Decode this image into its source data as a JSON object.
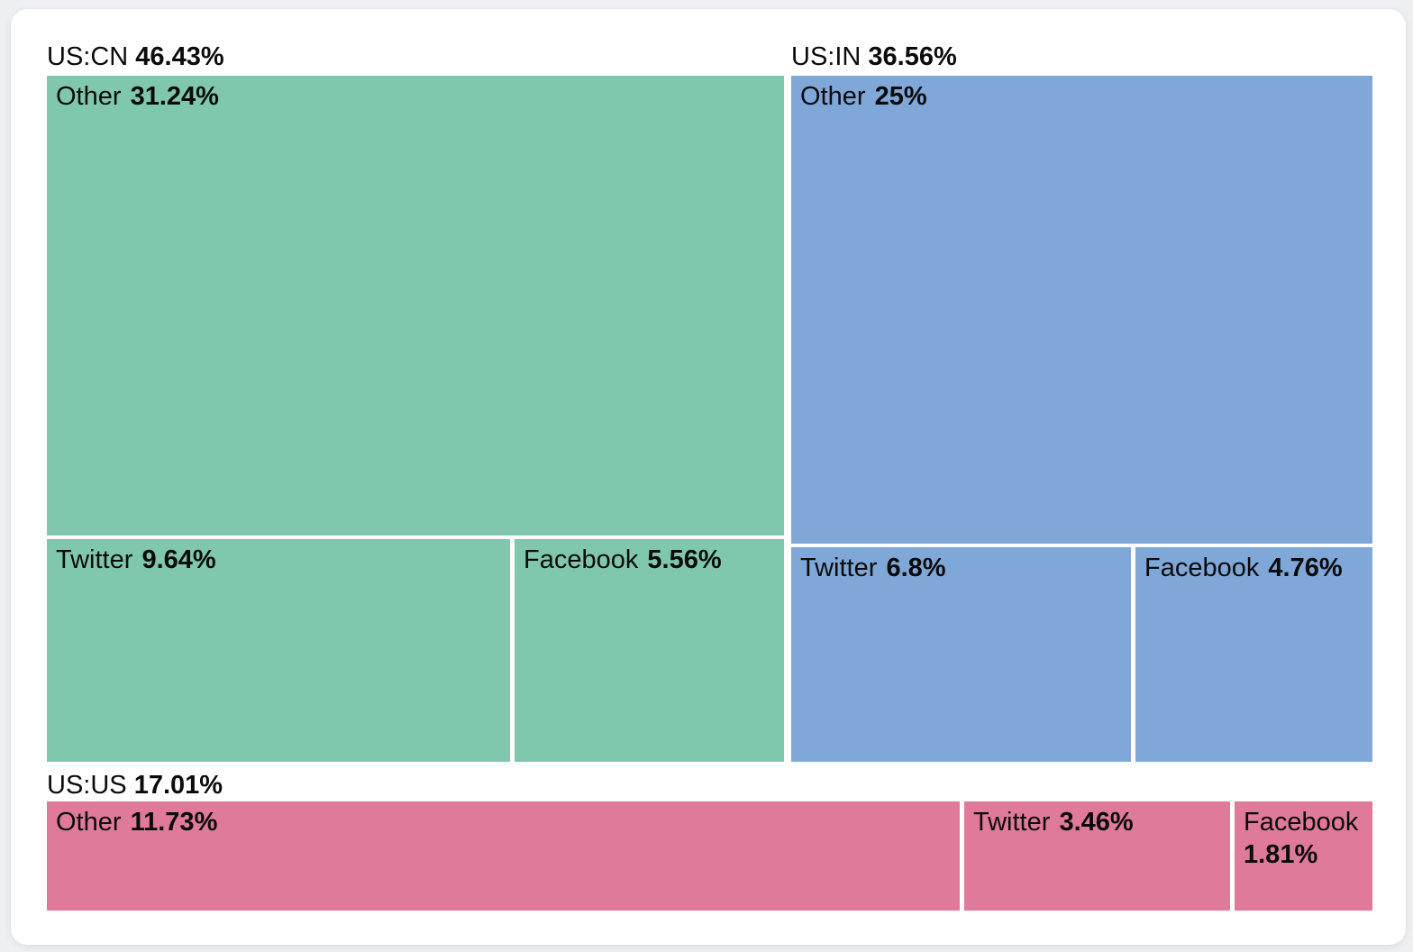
{
  "chart_data": {
    "type": "treemap",
    "unit": "percent",
    "legend_position": "none",
    "groups": [
      {
        "name": "US:CN",
        "value": 46.43,
        "label": "46.43%",
        "color": "#80c8ad",
        "children": [
          {
            "name": "Other",
            "value": 31.24,
            "label": "31.24%"
          },
          {
            "name": "Twitter",
            "value": 9.64,
            "label": "9.64%"
          },
          {
            "name": "Facebook",
            "value": 5.56,
            "label": "5.56%"
          }
        ]
      },
      {
        "name": "US:IN",
        "value": 36.56,
        "label": "36.56%",
        "color": "#7fa7d8",
        "children": [
          {
            "name": "Other",
            "value": 25,
            "label": "25%"
          },
          {
            "name": "Twitter",
            "value": 6.8,
            "label": "6.8%"
          },
          {
            "name": "Facebook",
            "value": 4.76,
            "label": "4.76%"
          }
        ]
      },
      {
        "name": "US:US",
        "value": 17.01,
        "label": "17.01%",
        "color": "#df7a9b",
        "children": [
          {
            "name": "Other",
            "value": 11.73,
            "label": "11.73%"
          },
          {
            "name": "Twitter",
            "value": 3.46,
            "label": "3.46%"
          },
          {
            "name": "Facebook",
            "value": 1.81,
            "label": "1.81%"
          }
        ]
      }
    ]
  }
}
